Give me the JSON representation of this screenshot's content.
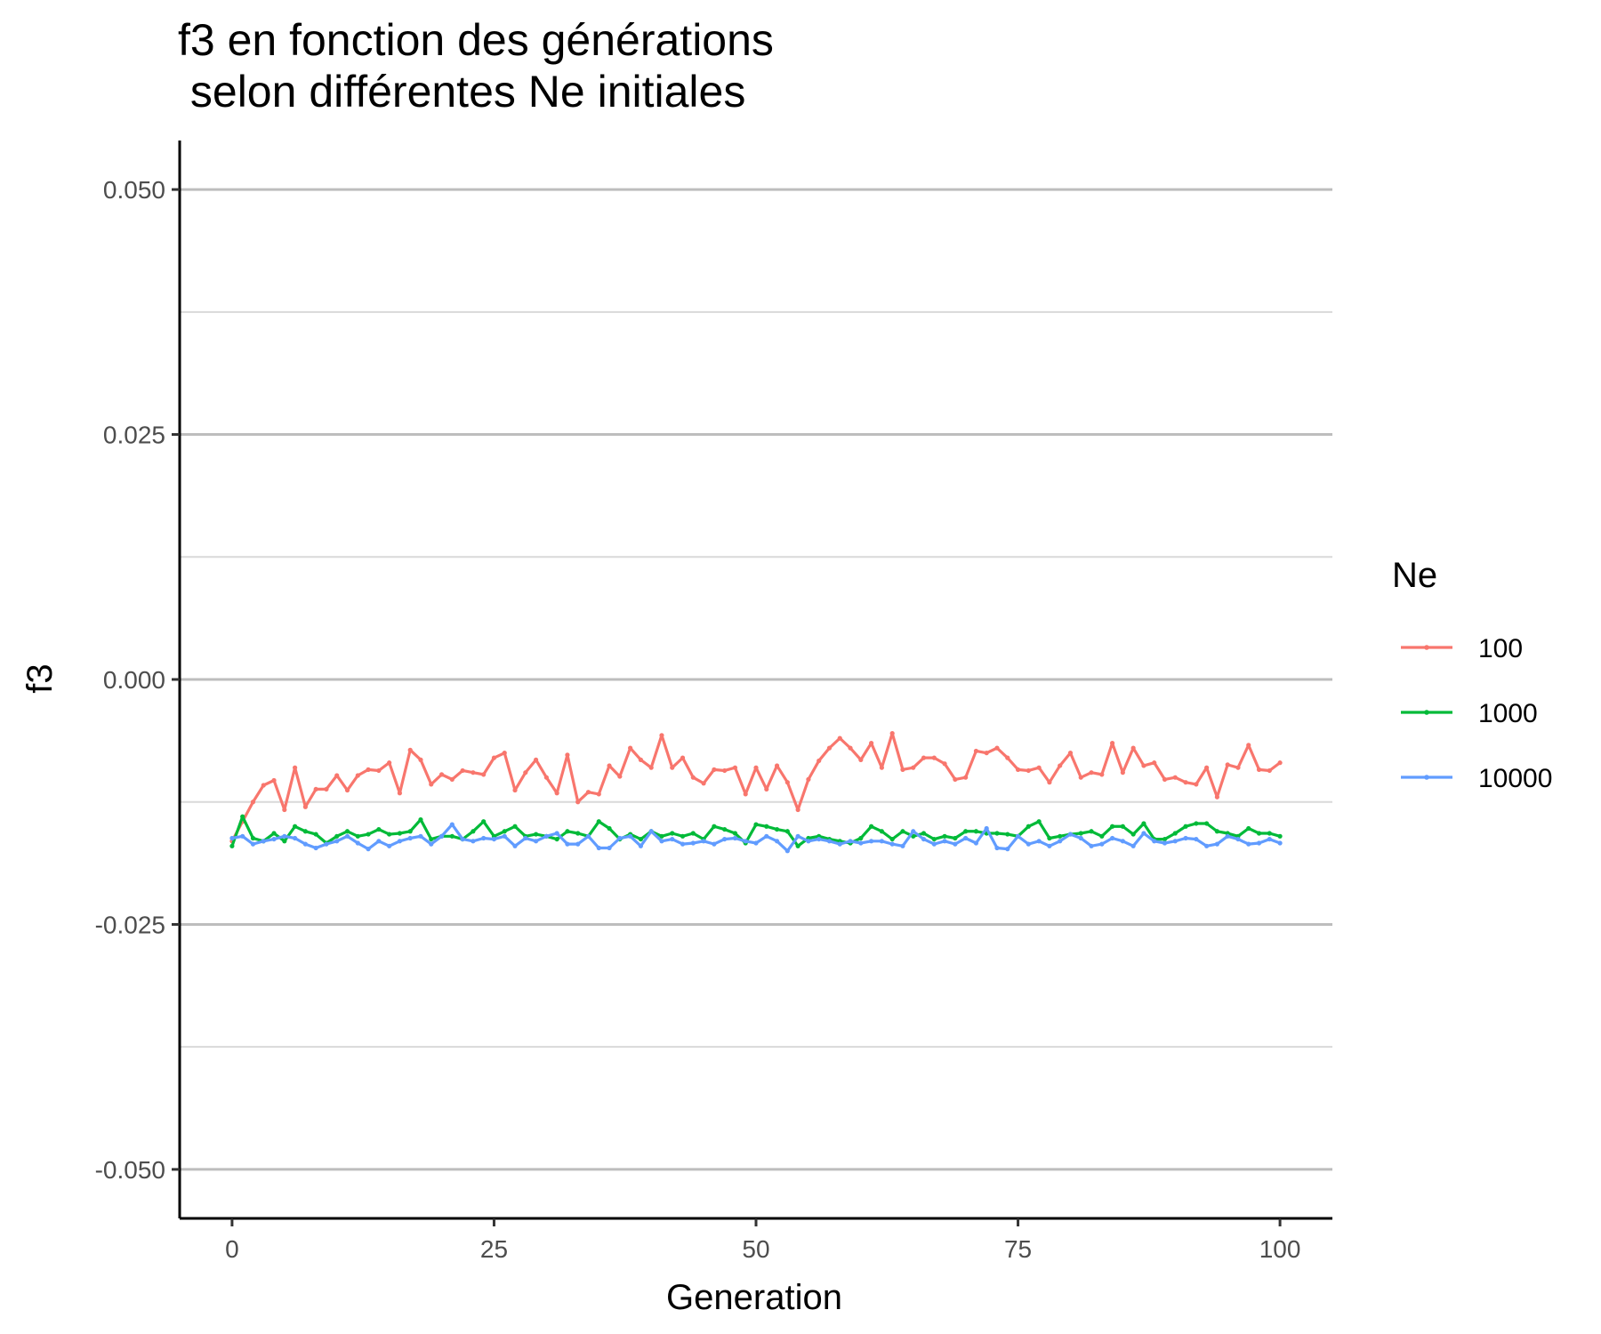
{
  "chart_data": {
    "type": "line",
    "title_line1": "f3 en fonction des générations",
    "title_line2": " selon différentes Ne initiales",
    "xlabel": "Generation",
    "ylabel": "f3",
    "xlim": [
      -5,
      105
    ],
    "ylim": [
      -0.055,
      0.055
    ],
    "x_ticks": [
      0,
      25,
      50,
      75,
      100
    ],
    "x_tick_labels": [
      "0",
      "25",
      "50",
      "75",
      "100"
    ],
    "y_ticks": [
      0.05,
      0.025,
      0,
      -0.025,
      -0.05
    ],
    "y_tick_labels": [
      "0.050",
      "0.025",
      "0.000",
      "-0.025",
      "-0.050"
    ],
    "y_minor_ticks": [
      0.0375,
      0.0125,
      -0.0125,
      -0.0375
    ],
    "grid": "horizontal",
    "legend": {
      "title": "Ne",
      "position": "right"
    },
    "x": [
      0,
      1,
      2,
      3,
      4,
      5,
      6,
      7,
      8,
      9,
      10,
      11,
      12,
      13,
      14,
      15,
      16,
      17,
      18,
      19,
      20,
      21,
      22,
      23,
      24,
      25,
      26,
      27,
      28,
      29,
      30,
      31,
      32,
      33,
      34,
      35,
      36,
      37,
      38,
      39,
      40,
      41,
      42,
      43,
      44,
      45,
      46,
      47,
      48,
      49,
      50,
      51,
      52,
      53,
      54,
      55,
      56,
      57,
      58,
      59,
      60,
      61,
      62,
      63,
      64,
      65,
      66,
      67,
      68,
      69,
      70,
      71,
      72,
      73,
      74,
      75,
      76,
      77,
      78,
      79,
      80,
      81,
      82,
      83,
      84,
      85,
      86,
      87,
      88,
      89,
      90,
      91,
      92,
      93,
      94,
      95,
      96,
      97,
      98,
      99,
      100
    ],
    "series": [
      {
        "name": "100",
        "color": "#F8766D",
        "values": [
          -0.0165,
          -0.0145,
          -0.0125,
          -0.0108,
          -0.0103,
          -0.0133,
          -0.009,
          -0.013,
          -0.0112,
          -0.0112,
          -0.0098,
          -0.0113,
          -0.0098,
          -0.0092,
          -0.0093,
          -0.0085,
          -0.0116,
          -0.0072,
          -0.0082,
          -0.0107,
          -0.0097,
          -0.0102,
          -0.0093,
          -0.0095,
          -0.0097,
          -0.008,
          -0.0075,
          -0.0113,
          -0.0095,
          -0.0082,
          -0.01,
          -0.0116,
          -0.0077,
          -0.0125,
          -0.0115,
          -0.0117,
          -0.0088,
          -0.0099,
          -0.007,
          -0.0082,
          -0.009,
          -0.0057,
          -0.009,
          -0.008,
          -0.01,
          -0.0106,
          -0.0092,
          -0.0093,
          -0.009,
          -0.0117,
          -0.009,
          -0.0112,
          -0.0088,
          -0.0105,
          -0.0133,
          -0.0102,
          -0.0083,
          -0.007,
          -0.006,
          -0.007,
          -0.0082,
          -0.0065,
          -0.009,
          -0.0055,
          -0.0092,
          -0.009,
          -0.008,
          -0.008,
          -0.0086,
          -0.0102,
          -0.01,
          -0.0073,
          -0.0075,
          -0.007,
          -0.008,
          -0.0092,
          -0.0093,
          -0.009,
          -0.0105,
          -0.0088,
          -0.0075,
          -0.01,
          -0.0095,
          -0.0097,
          -0.0065,
          -0.0095,
          -0.007,
          -0.0088,
          -0.0085,
          -0.0102,
          -0.01,
          -0.0105,
          -0.0107,
          -0.009,
          -0.012,
          -0.0087,
          -0.009,
          -0.0067,
          -0.0092,
          -0.0093,
          -0.0085
        ]
      },
      {
        "name": "1000",
        "color": "#00BA38",
        "values": [
          -0.017,
          -0.014,
          -0.0162,
          -0.0165,
          -0.0157,
          -0.0165,
          -0.015,
          -0.0155,
          -0.0158,
          -0.0167,
          -0.016,
          -0.0155,
          -0.016,
          -0.0158,
          -0.0153,
          -0.0158,
          -0.0157,
          -0.0155,
          -0.0143,
          -0.0163,
          -0.016,
          -0.016,
          -0.0163,
          -0.0155,
          -0.0145,
          -0.016,
          -0.0155,
          -0.015,
          -0.016,
          -0.0158,
          -0.016,
          -0.0163,
          -0.0155,
          -0.0157,
          -0.016,
          -0.0145,
          -0.0152,
          -0.0163,
          -0.0158,
          -0.0163,
          -0.0155,
          -0.016,
          -0.0157,
          -0.016,
          -0.0157,
          -0.0163,
          -0.015,
          -0.0153,
          -0.0157,
          -0.0167,
          -0.0148,
          -0.015,
          -0.0153,
          -0.0155,
          -0.017,
          -0.0162,
          -0.016,
          -0.0163,
          -0.0165,
          -0.0167,
          -0.0162,
          -0.015,
          -0.0155,
          -0.0163,
          -0.0155,
          -0.016,
          -0.0157,
          -0.0163,
          -0.016,
          -0.0162,
          -0.0155,
          -0.0155,
          -0.0157,
          -0.0157,
          -0.0158,
          -0.016,
          -0.015,
          -0.0145,
          -0.0162,
          -0.016,
          -0.0158,
          -0.0157,
          -0.0155,
          -0.016,
          -0.015,
          -0.015,
          -0.0158,
          -0.0147,
          -0.0163,
          -0.0163,
          -0.0157,
          -0.015,
          -0.0147,
          -0.0147,
          -0.0155,
          -0.0157,
          -0.016,
          -0.0152,
          -0.0157,
          -0.0157,
          -0.016
        ]
      },
      {
        "name": "10000",
        "color": "#619CFF",
        "values": [
          -0.0162,
          -0.016,
          -0.0168,
          -0.0165,
          -0.0163,
          -0.016,
          -0.0162,
          -0.0168,
          -0.0172,
          -0.0168,
          -0.0165,
          -0.016,
          -0.0167,
          -0.0173,
          -0.0165,
          -0.017,
          -0.0165,
          -0.0162,
          -0.016,
          -0.0168,
          -0.016,
          -0.0148,
          -0.0163,
          -0.0165,
          -0.0162,
          -0.0163,
          -0.016,
          -0.017,
          -0.0162,
          -0.0165,
          -0.016,
          -0.0157,
          -0.0168,
          -0.0168,
          -0.016,
          -0.0172,
          -0.0172,
          -0.0162,
          -0.016,
          -0.017,
          -0.0155,
          -0.0165,
          -0.0163,
          -0.0168,
          -0.0167,
          -0.0165,
          -0.0168,
          -0.0163,
          -0.0162,
          -0.0165,
          -0.0167,
          -0.016,
          -0.0165,
          -0.0175,
          -0.016,
          -0.0165,
          -0.0163,
          -0.0165,
          -0.0168,
          -0.0165,
          -0.0167,
          -0.0165,
          -0.0165,
          -0.0168,
          -0.017,
          -0.0155,
          -0.0163,
          -0.0168,
          -0.0165,
          -0.0168,
          -0.0162,
          -0.0167,
          -0.0152,
          -0.0172,
          -0.0173,
          -0.016,
          -0.0168,
          -0.0165,
          -0.017,
          -0.0165,
          -0.0158,
          -0.0162,
          -0.017,
          -0.0168,
          -0.0162,
          -0.0165,
          -0.017,
          -0.0157,
          -0.0165,
          -0.0167,
          -0.0165,
          -0.0162,
          -0.0163,
          -0.017,
          -0.0168,
          -0.016,
          -0.0163,
          -0.0168,
          -0.0167,
          -0.0163,
          -0.0167
        ]
      }
    ]
  }
}
